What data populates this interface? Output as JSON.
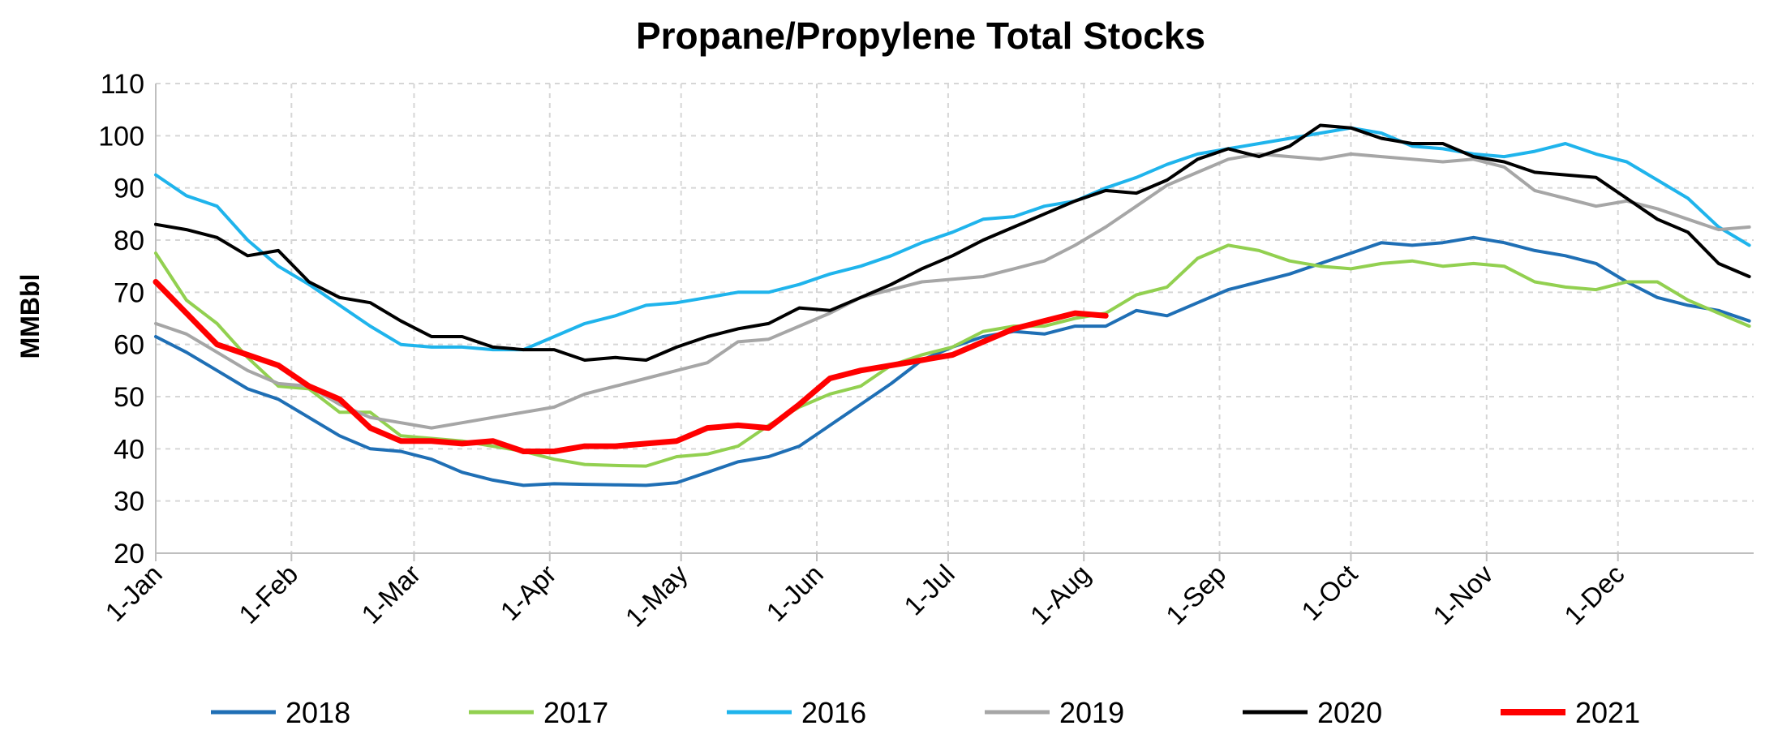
{
  "chart_data": {
    "type": "line",
    "title": "Propane/Propylene Total Stocks",
    "ylabel": "MMBbl",
    "xlabel": "",
    "ylim": [
      20,
      110
    ],
    "yticks": [
      20,
      30,
      40,
      50,
      60,
      70,
      80,
      90,
      100,
      110
    ],
    "xlim": [
      0,
      365
    ],
    "xticks": [
      {
        "label": "1-Jan",
        "day": 0
      },
      {
        "label": "1-Feb",
        "day": 31
      },
      {
        "label": "1-Mar",
        "day": 59
      },
      {
        "label": "1-Apr",
        "day": 90
      },
      {
        "label": "1-May",
        "day": 120
      },
      {
        "label": "1-Jun",
        "day": 151
      },
      {
        "label": "1-Jul",
        "day": 181
      },
      {
        "label": "1-Aug",
        "day": 212
      },
      {
        "label": "1-Sep",
        "day": 243
      },
      {
        "label": "1-Oct",
        "day": 273
      },
      {
        "label": "1-Nov",
        "day": 304
      },
      {
        "label": "1-Dec",
        "day": 334
      }
    ],
    "grid": true,
    "legend_position": "bottom",
    "series": [
      {
        "name": "2018",
        "color": "#1F6FB5",
        "width": 4,
        "x": [
          0,
          7,
          14,
          21,
          28,
          35,
          42,
          49,
          56,
          63,
          70,
          77,
          84,
          91,
          98,
          105,
          112,
          119,
          126,
          133,
          140,
          147,
          154,
          161,
          168,
          175,
          182,
          189,
          196,
          203,
          210,
          217,
          224,
          231,
          238,
          245,
          252,
          259,
          266,
          273,
          280,
          287,
          294,
          301,
          308,
          315,
          322,
          329,
          336,
          343,
          350,
          357,
          364
        ],
        "values": [
          61.5,
          58.5,
          55.0,
          51.5,
          49.5,
          46.0,
          42.5,
          40.0,
          39.5,
          38.0,
          35.5,
          34.0,
          33.0,
          33.3,
          33.2,
          33.1,
          33.0,
          33.5,
          35.5,
          37.5,
          38.5,
          40.5,
          44.5,
          48.5,
          52.5,
          57.0,
          59.5,
          61.5,
          62.5,
          62.0,
          63.5,
          63.5,
          66.5,
          65.5,
          68.0,
          70.5,
          72.0,
          73.5,
          75.5,
          77.5,
          79.5,
          79.0,
          79.5,
          80.5,
          79.5,
          78.0,
          77.0,
          75.5,
          72.0,
          69.0,
          67.5,
          66.5,
          64.5
        ]
      },
      {
        "name": "2017",
        "color": "#92D050",
        "width": 4,
        "x": [
          0,
          7,
          14,
          21,
          28,
          35,
          42,
          49,
          56,
          63,
          70,
          77,
          84,
          91,
          98,
          105,
          112,
          119,
          126,
          133,
          140,
          147,
          154,
          161,
          168,
          175,
          182,
          189,
          196,
          203,
          210,
          217,
          224,
          231,
          238,
          245,
          252,
          259,
          266,
          273,
          280,
          287,
          294,
          301,
          308,
          315,
          322,
          329,
          336,
          343,
          350,
          357,
          364
        ],
        "values": [
          77.5,
          68.5,
          64.0,
          57.5,
          52.0,
          51.5,
          47.0,
          47.0,
          42.5,
          42.0,
          41.5,
          40.5,
          39.5,
          38.0,
          37.0,
          36.8,
          36.7,
          38.5,
          39.0,
          40.5,
          44.5,
          48.0,
          50.5,
          52.0,
          56.0,
          58.0,
          59.5,
          62.5,
          63.5,
          63.5,
          65.0,
          66.0,
          69.5,
          71.0,
          76.5,
          79.0,
          78.0,
          76.0,
          75.0,
          74.5,
          75.5,
          76.0,
          75.0,
          75.5,
          75.0,
          72.0,
          71.0,
          70.5,
          72.0,
          72.0,
          68.5,
          66.0,
          63.5
        ]
      },
      {
        "name": "2016",
        "color": "#1FB4EC",
        "width": 4,
        "x": [
          0,
          7,
          14,
          21,
          28,
          35,
          42,
          49,
          56,
          63,
          70,
          77,
          84,
          91,
          98,
          105,
          112,
          119,
          126,
          133,
          140,
          147,
          154,
          161,
          168,
          175,
          182,
          189,
          196,
          203,
          210,
          217,
          224,
          231,
          238,
          245,
          252,
          259,
          266,
          273,
          280,
          287,
          294,
          301,
          308,
          315,
          322,
          329,
          336,
          343,
          350,
          357,
          364
        ],
        "values": [
          92.5,
          88.5,
          86.5,
          80.0,
          75.0,
          71.5,
          67.5,
          63.5,
          60.0,
          59.5,
          59.5,
          59.0,
          59.0,
          61.5,
          64.0,
          65.5,
          67.5,
          68.0,
          69.0,
          70.0,
          70.0,
          71.5,
          73.5,
          75.0,
          77.0,
          79.5,
          81.5,
          84.0,
          84.5,
          86.5,
          87.5,
          90.0,
          92.0,
          94.5,
          96.5,
          97.5,
          98.5,
          99.5,
          100.5,
          101.5,
          100.5,
          98.0,
          97.5,
          96.5,
          96.0,
          97.0,
          98.5,
          96.5,
          95.0,
          91.5,
          88.0,
          82.5,
          79.0
        ]
      },
      {
        "name": "2019",
        "color": "#A6A6A6",
        "width": 4,
        "x": [
          0,
          7,
          14,
          21,
          28,
          35,
          42,
          49,
          56,
          63,
          70,
          77,
          84,
          91,
          98,
          105,
          112,
          119,
          126,
          133,
          140,
          147,
          154,
          161,
          168,
          175,
          182,
          189,
          196,
          203,
          210,
          217,
          224,
          231,
          238,
          245,
          252,
          259,
          266,
          273,
          280,
          287,
          294,
          301,
          308,
          315,
          322,
          329,
          336,
          343,
          350,
          357,
          364
        ],
        "values": [
          64.0,
          62.0,
          58.5,
          55.0,
          52.5,
          52.0,
          48.5,
          46.0,
          45.0,
          44.0,
          45.0,
          46.0,
          47.0,
          48.0,
          50.5,
          52.0,
          53.5,
          55.0,
          56.5,
          60.5,
          61.0,
          63.5,
          66.0,
          69.0,
          70.5,
          72.0,
          72.5,
          73.0,
          74.5,
          76.0,
          79.0,
          82.5,
          86.5,
          90.5,
          93.0,
          95.5,
          96.5,
          96.0,
          95.5,
          96.5,
          96.0,
          95.5,
          95.0,
          95.5,
          94.0,
          89.5,
          88.0,
          86.5,
          87.5,
          86.0,
          84.0,
          82.0,
          82.5
        ]
      },
      {
        "name": "2020",
        "color": "#000000",
        "width": 4,
        "x": [
          0,
          7,
          14,
          21,
          28,
          35,
          42,
          49,
          56,
          63,
          70,
          77,
          84,
          91,
          98,
          105,
          112,
          119,
          126,
          133,
          140,
          147,
          154,
          161,
          168,
          175,
          182,
          189,
          196,
          203,
          210,
          217,
          224,
          231,
          238,
          245,
          252,
          259,
          266,
          273,
          280,
          287,
          294,
          301,
          308,
          315,
          322,
          329,
          336,
          343,
          350,
          357,
          364
        ],
        "values": [
          83.0,
          82.0,
          80.5,
          77.0,
          78.0,
          72.0,
          69.0,
          68.0,
          64.5,
          61.5,
          61.5,
          59.5,
          59.0,
          59.0,
          57.0,
          57.5,
          57.0,
          59.5,
          61.5,
          63.0,
          64.0,
          67.0,
          66.5,
          69.0,
          71.5,
          74.5,
          77.0,
          80.0,
          82.5,
          85.0,
          87.5,
          89.5,
          89.0,
          91.5,
          95.5,
          97.5,
          96.0,
          98.0,
          102.0,
          101.5,
          99.5,
          98.5,
          98.5,
          96.0,
          95.0,
          93.0,
          92.5,
          92.0,
          88.0,
          84.0,
          81.5,
          75.5,
          73.0
        ]
      },
      {
        "name": "2021",
        "color": "#FF0000",
        "width": 7,
        "x": [
          0,
          7,
          14,
          21,
          28,
          35,
          42,
          49,
          56,
          63,
          70,
          77,
          84,
          91,
          98,
          105,
          112,
          119,
          126,
          133,
          140,
          147,
          154,
          161,
          168,
          175,
          182,
          189,
          196,
          203,
          210,
          217
        ],
        "values": [
          72.0,
          66.0,
          60.0,
          58.0,
          56.0,
          52.0,
          49.5,
          44.0,
          41.5,
          41.5,
          41.0,
          41.5,
          39.5,
          39.5,
          40.5,
          40.5,
          41.0,
          41.5,
          44.0,
          44.5,
          44.0,
          48.5,
          53.5,
          55.0,
          56.0,
          57.0,
          58.0,
          60.5,
          63.0,
          64.5,
          66.0,
          65.5
        ]
      }
    ]
  }
}
